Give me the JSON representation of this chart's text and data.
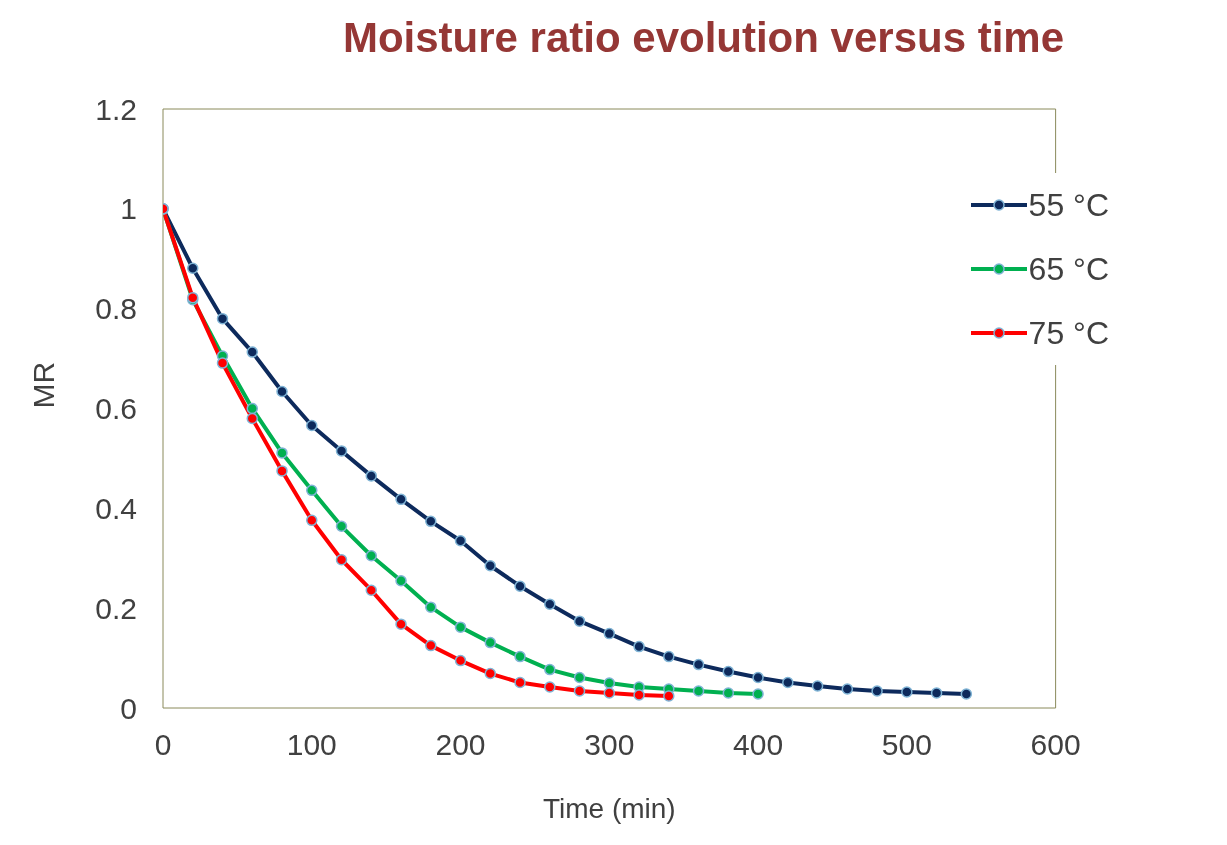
{
  "chart_data": {
    "type": "line",
    "title": "Moisture ratio evolution versus time",
    "xlabel": "Time (min)",
    "ylabel": "MR",
    "xlim": [
      0,
      600
    ],
    "xticks": [
      0,
      100,
      200,
      300,
      400,
      500,
      600
    ],
    "ylim": [
      0,
      1.2
    ],
    "yticks": [
      0,
      0.2,
      0.4,
      0.6,
      0.8,
      1,
      1.2
    ],
    "grid": false,
    "legend": "top right",
    "marker": "circle",
    "line_style": "solid",
    "series": [
      {
        "name": "55 °C",
        "color": "#0d2a5c",
        "x": [
          0,
          20,
          40,
          60,
          80,
          100,
          120,
          140,
          160,
          180,
          200,
          220,
          240,
          260,
          280,
          300,
          320,
          340,
          360,
          380,
          400,
          420,
          440,
          460,
          480,
          500,
          520,
          540
        ],
        "values": [
          1,
          0.881,
          0.78,
          0.713,
          0.634,
          0.566,
          0.515,
          0.465,
          0.418,
          0.374,
          0.335,
          0.285,
          0.244,
          0.208,
          0.174,
          0.149,
          0.123,
          0.103,
          0.087,
          0.073,
          0.061,
          0.051,
          0.044,
          0.038,
          0.034,
          0.032,
          0.03,
          0.028
        ]
      },
      {
        "name": "65 °C",
        "color": "#00b050",
        "x": [
          0,
          20,
          40,
          60,
          80,
          100,
          120,
          140,
          160,
          180,
          200,
          220,
          240,
          260,
          280,
          300,
          320,
          340,
          360,
          380,
          400
        ],
        "values": [
          1,
          0.818,
          0.705,
          0.6,
          0.511,
          0.436,
          0.364,
          0.305,
          0.255,
          0.202,
          0.162,
          0.131,
          0.103,
          0.077,
          0.061,
          0.05,
          0.042,
          0.038,
          0.034,
          0.03,
          0.028
        ]
      },
      {
        "name": "75 °C",
        "color": "#ff0000",
        "x": [
          0,
          20,
          40,
          60,
          80,
          100,
          120,
          140,
          160,
          180,
          200,
          220,
          240,
          260,
          280,
          300,
          320,
          340
        ],
        "values": [
          1,
          0.822,
          0.691,
          0.58,
          0.475,
          0.376,
          0.297,
          0.236,
          0.168,
          0.125,
          0.095,
          0.069,
          0.051,
          0.042,
          0.034,
          0.03,
          0.026,
          0.024
        ]
      }
    ]
  }
}
